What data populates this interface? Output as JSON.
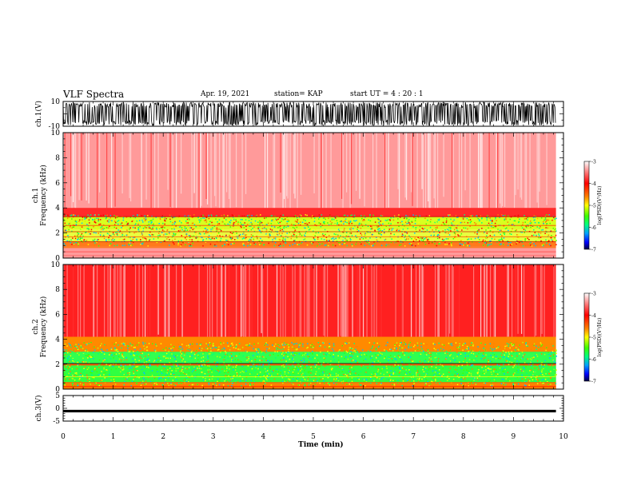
{
  "header": {
    "title": "VLF Spectra",
    "date": "Apr. 19, 2021",
    "station": "station= KAP",
    "start_ut": "start  UT =   4 : 20 : 1"
  },
  "colors": {
    "palette": [
      "#000080",
      "#0000ff",
      "#00a0ff",
      "#00ff80",
      "#40ff00",
      "#c0ff00",
      "#ffff00",
      "#ff8000",
      "#ff0000",
      "#ff8080",
      "#ffffff"
    ]
  },
  "chart_data": [
    {
      "type": "line",
      "panel": "ch1-waveform",
      "ylabel": "ch.1(V)",
      "ylim": [
        -10,
        10
      ],
      "yticks": [
        "10",
        "-10"
      ],
      "xlim": [
        0,
        10
      ],
      "note_series": "saturated waveform between -10 and 10 V"
    },
    {
      "type": "heatmap",
      "panel": "ch1-spectrogram",
      "ylabel": "ch.1\nFrequency (kHz)",
      "ylabel_lines": [
        "ch.1",
        "Frequency  (kHz)"
      ],
      "ylim": [
        0,
        10
      ],
      "yticks": [
        "0",
        "2",
        "4",
        "6",
        "8",
        "10"
      ],
      "xlim": [
        0,
        10
      ],
      "colorbar": {
        "label": "log(PSD)(V²/Hz)",
        "ticks": [
          "-3",
          "-4",
          "-5",
          "-6",
          "-7"
        ],
        "range": [
          -7,
          -3
        ]
      }
    },
    {
      "type": "heatmap",
      "panel": "ch2-spectrogram",
      "ylabel_lines": [
        "ch.2",
        "Frequency  (kHz)"
      ],
      "ylim": [
        0,
        10
      ],
      "yticks": [
        "0",
        "2",
        "4",
        "6",
        "8",
        "10"
      ],
      "xlim": [
        0,
        10
      ],
      "colorbar": {
        "label": "log(PSD)(V²/Hz)",
        "ticks": [
          "-3",
          "-4",
          "-5",
          "-6",
          "-7"
        ],
        "range": [
          -7,
          -3
        ]
      }
    },
    {
      "type": "line",
      "panel": "ch3-waveform",
      "ylabel": "ch.3(V)",
      "ylim": [
        -5,
        5
      ],
      "yticks": [
        "5",
        "0",
        "-5"
      ],
      "xlim": [
        0,
        10
      ]
    }
  ],
  "xaxis": {
    "label": "Time  (min)",
    "ticks": [
      "0",
      "1",
      "2",
      "3",
      "4",
      "5",
      "6",
      "7",
      "8",
      "9",
      "10"
    ]
  }
}
